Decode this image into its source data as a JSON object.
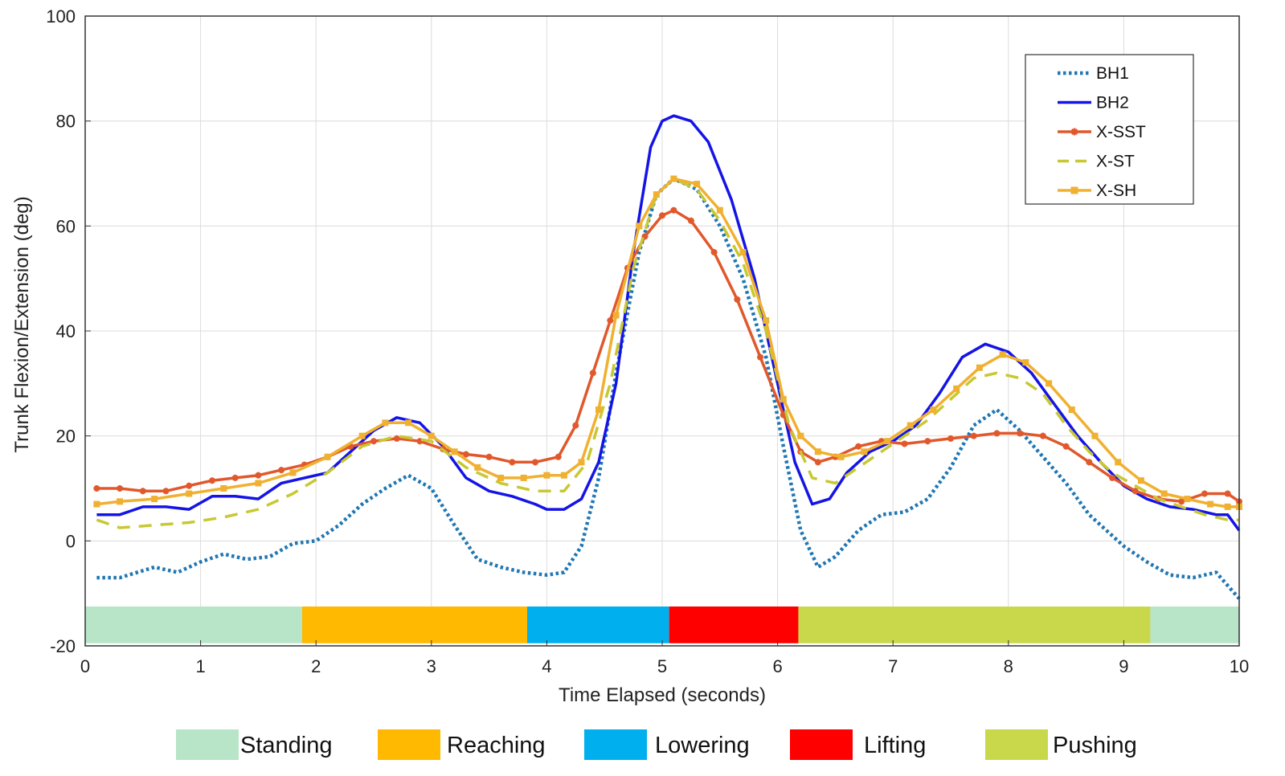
{
  "chart_data": {
    "type": "line",
    "title": "",
    "xlabel": "Time Elapsed (seconds)",
    "ylabel": "Trunk Flexion/Extension (deg)",
    "xlim": [
      0,
      10
    ],
    "ylim": [
      -20,
      100
    ],
    "xticks": [
      0,
      1,
      2,
      3,
      4,
      5,
      6,
      7,
      8,
      9,
      10
    ],
    "yticks": [
      -20,
      0,
      20,
      40,
      60,
      80,
      100
    ],
    "xtick_labels": [
      "0",
      "1",
      "2",
      "3",
      "4",
      "5",
      "6",
      "7",
      "8",
      "9",
      "10"
    ],
    "ytick_labels": [
      "-20",
      "0",
      "20",
      "40",
      "60",
      "80",
      "100"
    ],
    "grid": true,
    "legend_position": "top-right",
    "series": [
      {
        "name": "BH1",
        "color": "#1f77b4",
        "style": "dotted",
        "marker": "none",
        "points": [
          [
            0.1,
            -7
          ],
          [
            0.3,
            -7
          ],
          [
            0.6,
            -5
          ],
          [
            0.8,
            -6
          ],
          [
            1.0,
            -4
          ],
          [
            1.2,
            -2.5
          ],
          [
            1.4,
            -3.5
          ],
          [
            1.6,
            -3
          ],
          [
            1.8,
            -0.5
          ],
          [
            2.0,
            0
          ],
          [
            2.2,
            3
          ],
          [
            2.4,
            7
          ],
          [
            2.6,
            10
          ],
          [
            2.8,
            12.5
          ],
          [
            3.0,
            10
          ],
          [
            3.2,
            3
          ],
          [
            3.4,
            -3.5
          ],
          [
            3.6,
            -5
          ],
          [
            3.8,
            -6
          ],
          [
            4.0,
            -6.5
          ],
          [
            4.15,
            -6
          ],
          [
            4.3,
            -1
          ],
          [
            4.45,
            12
          ],
          [
            4.6,
            32
          ],
          [
            4.8,
            55
          ],
          [
            4.95,
            66
          ],
          [
            5.1,
            69
          ],
          [
            5.3,
            67
          ],
          [
            5.5,
            60
          ],
          [
            5.7,
            50
          ],
          [
            5.9,
            35
          ],
          [
            6.05,
            18
          ],
          [
            6.2,
            2
          ],
          [
            6.35,
            -5
          ],
          [
            6.5,
            -3
          ],
          [
            6.7,
            2
          ],
          [
            6.9,
            5
          ],
          [
            7.1,
            5.5
          ],
          [
            7.3,
            8
          ],
          [
            7.5,
            14
          ],
          [
            7.7,
            22
          ],
          [
            7.9,
            25
          ],
          [
            8.1,
            21
          ],
          [
            8.3,
            16
          ],
          [
            8.5,
            11
          ],
          [
            8.7,
            5
          ],
          [
            9.0,
            -1
          ],
          [
            9.2,
            -4
          ],
          [
            9.4,
            -6.5
          ],
          [
            9.6,
            -7
          ],
          [
            9.8,
            -6
          ],
          [
            10.0,
            -11
          ]
        ]
      },
      {
        "name": "BH2",
        "color": "#1414e6",
        "style": "solid",
        "marker": "none",
        "points": [
          [
            0.1,
            5
          ],
          [
            0.3,
            5
          ],
          [
            0.5,
            6.5
          ],
          [
            0.7,
            6.5
          ],
          [
            0.9,
            6
          ],
          [
            1.1,
            8.5
          ],
          [
            1.3,
            8.5
          ],
          [
            1.5,
            8
          ],
          [
            1.7,
            11
          ],
          [
            1.9,
            12
          ],
          [
            2.1,
            13
          ],
          [
            2.3,
            17
          ],
          [
            2.5,
            21
          ],
          [
            2.7,
            23.5
          ],
          [
            2.9,
            22.5
          ],
          [
            3.1,
            18
          ],
          [
            3.3,
            12
          ],
          [
            3.5,
            9.5
          ],
          [
            3.7,
            8.5
          ],
          [
            3.9,
            7
          ],
          [
            4.0,
            6
          ],
          [
            4.15,
            6
          ],
          [
            4.3,
            8
          ],
          [
            4.45,
            15
          ],
          [
            4.6,
            30
          ],
          [
            4.75,
            55
          ],
          [
            4.9,
            75
          ],
          [
            5.0,
            80
          ],
          [
            5.1,
            81
          ],
          [
            5.25,
            80
          ],
          [
            5.4,
            76
          ],
          [
            5.6,
            65
          ],
          [
            5.8,
            50
          ],
          [
            6.0,
            30
          ],
          [
            6.15,
            15
          ],
          [
            6.3,
            7
          ],
          [
            6.45,
            8
          ],
          [
            6.6,
            13
          ],
          [
            6.8,
            17
          ],
          [
            7.0,
            19
          ],
          [
            7.2,
            22
          ],
          [
            7.4,
            28
          ],
          [
            7.6,
            35
          ],
          [
            7.8,
            37.5
          ],
          [
            8.0,
            36
          ],
          [
            8.2,
            32
          ],
          [
            8.4,
            26
          ],
          [
            8.6,
            20
          ],
          [
            8.8,
            15
          ],
          [
            9.0,
            10.5
          ],
          [
            9.2,
            8
          ],
          [
            9.4,
            6.5
          ],
          [
            9.6,
            6
          ],
          [
            9.8,
            5
          ],
          [
            9.9,
            5
          ],
          [
            10.0,
            2
          ]
        ]
      },
      {
        "name": "X-SST",
        "color": "#e0582b",
        "style": "solid",
        "marker": "star",
        "points": [
          [
            0.1,
            10
          ],
          [
            0.3,
            10
          ],
          [
            0.5,
            9.5
          ],
          [
            0.7,
            9.5
          ],
          [
            0.9,
            10.5
          ],
          [
            1.1,
            11.5
          ],
          [
            1.3,
            12
          ],
          [
            1.5,
            12.5
          ],
          [
            1.7,
            13.5
          ],
          [
            1.9,
            14.5
          ],
          [
            2.1,
            16
          ],
          [
            2.3,
            18
          ],
          [
            2.5,
            19
          ],
          [
            2.7,
            19.5
          ],
          [
            2.9,
            19
          ],
          [
            3.1,
            17.5
          ],
          [
            3.3,
            16.5
          ],
          [
            3.5,
            16
          ],
          [
            3.7,
            15
          ],
          [
            3.9,
            15
          ],
          [
            4.1,
            16
          ],
          [
            4.25,
            22
          ],
          [
            4.4,
            32
          ],
          [
            4.55,
            42
          ],
          [
            4.7,
            52
          ],
          [
            4.85,
            58
          ],
          [
            5.0,
            62
          ],
          [
            5.1,
            63
          ],
          [
            5.25,
            61
          ],
          [
            5.45,
            55
          ],
          [
            5.65,
            46
          ],
          [
            5.85,
            35
          ],
          [
            6.05,
            24
          ],
          [
            6.2,
            17
          ],
          [
            6.35,
            15
          ],
          [
            6.5,
            16
          ],
          [
            6.7,
            18
          ],
          [
            6.9,
            19
          ],
          [
            7.1,
            18.5
          ],
          [
            7.3,
            19
          ],
          [
            7.5,
            19.5
          ],
          [
            7.7,
            20
          ],
          [
            7.9,
            20.5
          ],
          [
            8.1,
            20.5
          ],
          [
            8.3,
            20
          ],
          [
            8.5,
            18
          ],
          [
            8.7,
            15
          ],
          [
            8.9,
            12
          ],
          [
            9.1,
            9.5
          ],
          [
            9.3,
            8
          ],
          [
            9.5,
            7.5
          ],
          [
            9.7,
            9
          ],
          [
            9.9,
            9
          ],
          [
            10.0,
            7.5
          ]
        ]
      },
      {
        "name": "X-ST",
        "color": "#c8c832",
        "style": "dashed",
        "marker": "none",
        "points": [
          [
            0.1,
            4
          ],
          [
            0.3,
            2.5
          ],
          [
            0.6,
            3
          ],
          [
            0.9,
            3.5
          ],
          [
            1.2,
            4.5
          ],
          [
            1.5,
            6
          ],
          [
            1.8,
            9
          ],
          [
            2.1,
            13
          ],
          [
            2.4,
            18
          ],
          [
            2.7,
            20
          ],
          [
            3.0,
            19
          ],
          [
            3.3,
            14
          ],
          [
            3.6,
            11
          ],
          [
            3.9,
            9.5
          ],
          [
            4.15,
            9.5
          ],
          [
            4.35,
            15
          ],
          [
            4.55,
            30
          ],
          [
            4.75,
            52
          ],
          [
            4.95,
            66
          ],
          [
            5.1,
            69
          ],
          [
            5.3,
            67
          ],
          [
            5.5,
            61
          ],
          [
            5.7,
            53
          ],
          [
            5.9,
            40
          ],
          [
            6.1,
            22
          ],
          [
            6.3,
            12
          ],
          [
            6.5,
            11
          ],
          [
            6.7,
            14
          ],
          [
            6.9,
            17
          ],
          [
            7.1,
            20
          ],
          [
            7.3,
            23
          ],
          [
            7.5,
            27
          ],
          [
            7.7,
            31
          ],
          [
            7.9,
            32
          ],
          [
            8.1,
            31
          ],
          [
            8.3,
            28
          ],
          [
            8.5,
            22
          ],
          [
            8.7,
            17
          ],
          [
            8.9,
            13
          ],
          [
            9.1,
            10.5
          ],
          [
            9.3,
            8
          ],
          [
            9.5,
            6.5
          ],
          [
            9.7,
            5
          ],
          [
            9.9,
            4
          ],
          [
            10.0,
            4
          ]
        ]
      },
      {
        "name": "X-SH",
        "color": "#f0b030",
        "style": "solid",
        "marker": "square",
        "points": [
          [
            0.1,
            7
          ],
          [
            0.3,
            7.5
          ],
          [
            0.6,
            8
          ],
          [
            0.9,
            9
          ],
          [
            1.2,
            10
          ],
          [
            1.5,
            11
          ],
          [
            1.8,
            13
          ],
          [
            2.1,
            16
          ],
          [
            2.4,
            20
          ],
          [
            2.6,
            22.5
          ],
          [
            2.8,
            22.5
          ],
          [
            3.0,
            20
          ],
          [
            3.2,
            17
          ],
          [
            3.4,
            14
          ],
          [
            3.6,
            12
          ],
          [
            3.8,
            12
          ],
          [
            4.0,
            12.5
          ],
          [
            4.15,
            12.5
          ],
          [
            4.3,
            15
          ],
          [
            4.45,
            25
          ],
          [
            4.6,
            43
          ],
          [
            4.8,
            60
          ],
          [
            4.95,
            66
          ],
          [
            5.1,
            69
          ],
          [
            5.3,
            68
          ],
          [
            5.5,
            63
          ],
          [
            5.7,
            55
          ],
          [
            5.9,
            42
          ],
          [
            6.05,
            27
          ],
          [
            6.2,
            20
          ],
          [
            6.35,
            17
          ],
          [
            6.55,
            16
          ],
          [
            6.75,
            17
          ],
          [
            6.95,
            19
          ],
          [
            7.15,
            22
          ],
          [
            7.35,
            25
          ],
          [
            7.55,
            29
          ],
          [
            7.75,
            33
          ],
          [
            7.95,
            35.5
          ],
          [
            8.15,
            34
          ],
          [
            8.35,
            30
          ],
          [
            8.55,
            25
          ],
          [
            8.75,
            20
          ],
          [
            8.95,
            15
          ],
          [
            9.15,
            11.5
          ],
          [
            9.35,
            9
          ],
          [
            9.55,
            8
          ],
          [
            9.75,
            7
          ],
          [
            9.9,
            6.5
          ],
          [
            10.0,
            6.5
          ]
        ]
      }
    ],
    "phases": [
      {
        "label": "Standing",
        "start": 0.0,
        "end": 1.88,
        "color": "#b8e4c8"
      },
      {
        "label": "Reaching",
        "start": 1.88,
        "end": 3.83,
        "color": "#ffb900"
      },
      {
        "label": "Lowering",
        "start": 3.83,
        "end": 5.06,
        "color": "#00b0ee"
      },
      {
        "label": "Lifting",
        "start": 5.06,
        "end": 6.18,
        "color": "#ff0000"
      },
      {
        "label": "Pushing",
        "start": 6.18,
        "end": 9.23,
        "color": "#c8d84a"
      },
      {
        "label": "Standing",
        "start": 9.23,
        "end": 10.0,
        "color": "#b8e4c8"
      }
    ],
    "phase_band_range": [
      -19.5,
      -12.5
    ],
    "phase_legend": [
      {
        "label": "Standing",
        "color": "#b8e4c8"
      },
      {
        "label": "Reaching",
        "color": "#ffb900"
      },
      {
        "label": "Lowering",
        "color": "#00b0ee"
      },
      {
        "label": "Lifting",
        "color": "#ff0000"
      },
      {
        "label": "Pushing",
        "color": "#c8d84a"
      }
    ]
  }
}
